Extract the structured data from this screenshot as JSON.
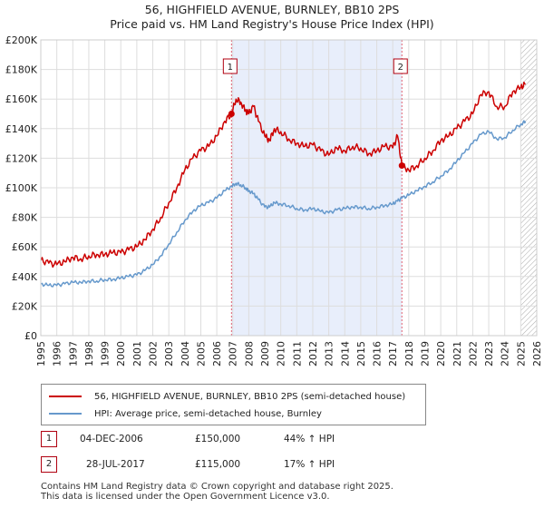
{
  "title_line1": "56, HIGHFIELD AVENUE, BURNLEY, BB10 2PS",
  "title_line2": "Price paid vs. HM Land Registry's House Price Index (HPI)",
  "legend": {
    "property_label": "56, HIGHFIELD AVENUE, BURNLEY, BB10 2PS (semi-detached house)",
    "hpi_label": "HPI: Average price, semi-detached house, Burnley"
  },
  "transactions": [
    {
      "num": "1",
      "date": "04-DEC-2006",
      "price": "£150,000",
      "hpi_change": "44% ↑ HPI"
    },
    {
      "num": "2",
      "date": "28-JUL-2017",
      "price": "£115,000",
      "hpi_change": "17% ↑ HPI"
    }
  ],
  "footer": {
    "line1": "Contains HM Land Registry data © Crown copyright and database right 2025.",
    "line2": "This data is licensed under the Open Government Licence v3.0."
  },
  "colors": {
    "property": "#cc0000",
    "hpi": "#6699cc",
    "shade": "#e8eefb",
    "grid": "#dddddd"
  },
  "chart_data": {
    "type": "line",
    "xlim": [
      1995,
      2026
    ],
    "ylim": [
      0,
      200000
    ],
    "xticks": [
      "1995",
      "1996",
      "1997",
      "1998",
      "1999",
      "2000",
      "2001",
      "2002",
      "2003",
      "2004",
      "2005",
      "2006",
      "2007",
      "2008",
      "2009",
      "2010",
      "2011",
      "2012",
      "2013",
      "2014",
      "2015",
      "2016",
      "2017",
      "2018",
      "2019",
      "2020",
      "2021",
      "2022",
      "2023",
      "2024",
      "2025",
      "2026"
    ],
    "yticks": [
      {
        "value": 0,
        "label": "£0"
      },
      {
        "value": 20000,
        "label": "£20K"
      },
      {
        "value": 40000,
        "label": "£40K"
      },
      {
        "value": 60000,
        "label": "£60K"
      },
      {
        "value": 80000,
        "label": "£80K"
      },
      {
        "value": 100000,
        "label": "£100K"
      },
      {
        "value": 120000,
        "label": "£120K"
      },
      {
        "value": 140000,
        "label": "£140K"
      },
      {
        "value": 160000,
        "label": "£160K"
      },
      {
        "value": 180000,
        "label": "£180K"
      },
      {
        "value": 200000,
        "label": "£200K"
      }
    ],
    "shaded_range": [
      2006.92,
      2017.57
    ],
    "hatched_from": 2025.0,
    "markers": [
      {
        "label": "1",
        "x": 2006.92,
        "y": 150000
      },
      {
        "label": "2",
        "x": 2017.57,
        "y": 115000
      }
    ],
    "series": [
      {
        "name": "56, HIGHFIELD AVENUE, BURNLEY, BB10 2PS (semi-detached house)",
        "x": [
          1995,
          1995.5,
          1996,
          1996.5,
          1997,
          1997.5,
          1998,
          1998.5,
          1999,
          1999.5,
          2000,
          2000.5,
          2001,
          2001.5,
          2002,
          2002.5,
          2003,
          2003.5,
          2004,
          2004.5,
          2005,
          2005.5,
          2006,
          2006.5,
          2006.92,
          2007.2,
          2007.5,
          2007.8,
          2008,
          2008.3,
          2008.6,
          2009,
          2009.3,
          2009.6,
          2010,
          2010.5,
          2011,
          2011.5,
          2012,
          2012.5,
          2013,
          2013.5,
          2014,
          2014.5,
          2015,
          2015.5,
          2016,
          2016.5,
          2017,
          2017.3,
          2017.57,
          2018,
          2018.5,
          2019,
          2019.5,
          2020,
          2020.5,
          2021,
          2021.5,
          2022,
          2022.5,
          2023,
          2023.5,
          2024,
          2024.5,
          2025,
          2025.3
        ],
        "values": [
          51000,
          49000,
          48000,
          50000,
          53000,
          52000,
          54000,
          55000,
          55000,
          56000,
          56000,
          58000,
          60000,
          65000,
          72000,
          80000,
          90000,
          100000,
          112000,
          120000,
          125000,
          128000,
          135000,
          145000,
          150000,
          160000,
          158000,
          152000,
          150000,
          155000,
          145000,
          135000,
          132000,
          140000,
          138000,
          133000,
          130000,
          128000,
          129000,
          125000,
          122000,
          127000,
          125000,
          128000,
          127000,
          123000,
          125000,
          128000,
          127000,
          135000,
          115000,
          112000,
          115000,
          120000,
          125000,
          132000,
          135000,
          140000,
          145000,
          150000,
          163000,
          165000,
          155000,
          155000,
          165000,
          168000,
          170000
        ]
      },
      {
        "name": "HPI: Average price, semi-detached house, Burnley",
        "x": [
          1995,
          1995.5,
          1996,
          1996.5,
          1997,
          1997.5,
          1998,
          1998.5,
          1999,
          1999.5,
          2000,
          2000.5,
          2001,
          2001.5,
          2002,
          2002.5,
          2003,
          2003.5,
          2004,
          2004.5,
          2005,
          2005.5,
          2006,
          2006.5,
          2006.92,
          2007.2,
          2007.5,
          2007.8,
          2008,
          2008.3,
          2008.6,
          2009,
          2009.3,
          2009.6,
          2010,
          2010.5,
          2011,
          2011.5,
          2012,
          2012.5,
          2013,
          2013.5,
          2014,
          2014.5,
          2015,
          2015.5,
          2016,
          2016.5,
          2017,
          2017.3,
          2017.57,
          2018,
          2018.5,
          2019,
          2019.5,
          2020,
          2020.5,
          2021,
          2021.5,
          2022,
          2022.5,
          2023,
          2023.5,
          2024,
          2024.5,
          2025,
          2025.3
        ],
        "values": [
          35000,
          34000,
          34000,
          35000,
          36000,
          36000,
          37000,
          37000,
          38000,
          38000,
          39000,
          40000,
          41000,
          44000,
          48000,
          54000,
          62000,
          70000,
          78000,
          84000,
          88000,
          90000,
          93000,
          98000,
          101000,
          103000,
          102000,
          100000,
          98000,
          96000,
          92000,
          87000,
          87000,
          90000,
          89000,
          88000,
          86000,
          85000,
          86000,
          84000,
          83000,
          85000,
          86000,
          87000,
          87000,
          86000,
          87000,
          88000,
          89000,
          91000,
          93000,
          95000,
          98000,
          101000,
          104000,
          108000,
          112000,
          118000,
          124000,
          130000,
          136000,
          138000,
          133000,
          134000,
          139000,
          143000,
          145000
        ]
      }
    ]
  }
}
